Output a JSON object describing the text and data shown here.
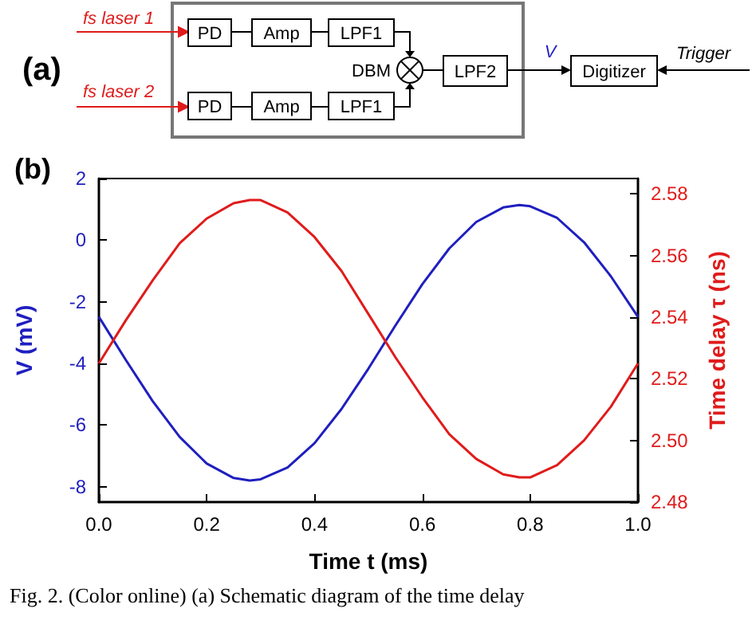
{
  "chart_data": [
    {
      "type": "other",
      "annotations": [
        "(a)",
        "fs laser 1",
        "fs laser 2",
        "PD",
        "Amp",
        "LPF1",
        "PD",
        "Amp",
        "LPF1",
        "DBM",
        "LPF2",
        "V",
        "Digitizer",
        "Trigger"
      ]
    },
    {
      "type": "line",
      "title": "(b)",
      "xlabel": "Time t (ms)",
      "ylabel": "V (mV)",
      "y2label": "Time delay τ (ns)",
      "x": [
        0,
        0.05,
        0.1,
        0.15,
        0.2,
        0.25,
        0.28,
        0.3,
        0.35,
        0.4,
        0.45,
        0.5,
        0.55,
        0.6,
        0.65,
        0.7,
        0.75,
        0.78,
        0.8,
        0.85,
        0.9,
        0.95,
        1
      ],
      "series": [
        {
          "color": "#1f1fbf",
          "values": [
            -2.49,
            -3.89,
            -5.23,
            -6.39,
            -7.25,
            -7.72,
            -7.8,
            -7.76,
            -7.38,
            -6.59,
            -5.48,
            -4.17,
            -2.77,
            -1.43,
            -0.27,
            0.59,
            1.06,
            1.14,
            1.1,
            0.72,
            -0.07,
            -1.18,
            -2.49
          ]
        },
        {
          "color": "#e01b1b",
          "axis": "y2",
          "values": [
            2.525,
            2.539,
            2.552,
            2.564,
            2.572,
            2.577,
            2.578,
            2.578,
            2.574,
            2.566,
            2.555,
            2.541,
            2.527,
            2.514,
            2.502,
            2.494,
            2.489,
            2.488,
            2.488,
            2.492,
            2.5,
            2.511,
            2.525
          ]
        }
      ],
      "xlim": [
        0,
        1
      ],
      "xticks": [
        {
          "value": 0,
          "label": "0.0"
        },
        0.2,
        0.4,
        0.6,
        0.8,
        {
          "value": 1,
          "label": "1.0"
        }
      ],
      "ylim": [
        -8.5,
        2
      ],
      "yticks": [
        -8,
        -6,
        -4,
        -2,
        0,
        2
      ],
      "y2lim": [
        2.48,
        2.585
      ],
      "y2ticks": [
        2.48,
        {
          "value": 2.5,
          "label": "2.50"
        },
        2.52,
        2.54,
        2.56,
        2.58
      ],
      "grid": false,
      "marker": "none",
      "line_style": "solid",
      "annotations": [
        "Fig. 2.   (Color online) (a) Schematic diagram of the time delay"
      ]
    }
  ]
}
